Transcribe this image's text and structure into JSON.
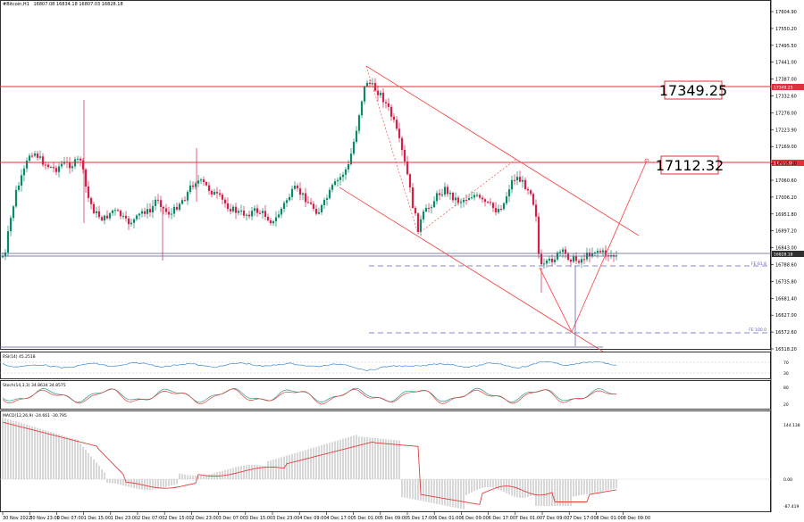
{
  "header": {
    "symbol": "#Bitcoin,H1",
    "ohlc": "16807.08 16834.18 16807.03 16828.18"
  },
  "price_axis": {
    "ticks": [
      "17604.90",
      "17550.20",
      "17495.50",
      "17441.00",
      "17387.00",
      "17332.60",
      "17278.00",
      "17223.90",
      "17169.00",
      "17115.20",
      "17060.60",
      "17006.20",
      "16951.80",
      "16897.20",
      "16843.00",
      "16788.60",
      "16735.80",
      "16681.40",
      "16627.00",
      "16572.60",
      "16518.20"
    ]
  },
  "time_axis": {
    "ticks": [
      "30 Nov 2022",
      "30 Nov 23:00",
      "1 Dec 07:00",
      "1 Dec 15:00",
      "1 Dec 23:00",
      "2 Dec 07:00",
      "2 Dec 15:00",
      "2 Dec 23:00",
      "3 Dec 07:00",
      "3 Dec 15:00",
      "3 Dec 23:00",
      "4 Dec 09:00",
      "4 Dec 17:00",
      "5 Dec 01:00",
      "5 Dec 09:00",
      "5 Dec 17:00",
      "6 Dec 01:00",
      "6 Dec 09:00",
      "6 Dec 17:00",
      "7 Dec 01:00",
      "7 Dec 09:00",
      "7 Dec 17:00",
      "8 Dec 01:00",
      "8 Dec 09:00"
    ]
  },
  "levels": {
    "upper": {
      "value": "17349.25",
      "tag": "17349.25"
    },
    "middle": {
      "value": "17112.32",
      "tag": "17112.32"
    },
    "current": {
      "tag": "16828.18"
    }
  },
  "fibo": {
    "level_61": "FE 61.8",
    "level_100": "FE 100.0"
  },
  "indicators": {
    "rsi": {
      "label": "RSI(14) 45.2518",
      "ticks": [
        "70",
        "30"
      ]
    },
    "stoch": {
      "label": "Stoch(14,3,3) 34.8634 34.8575",
      "ticks": [
        "80",
        "20"
      ]
    },
    "macd": {
      "label": "MACD(12,26,9) -24.661 -30.795",
      "ticks": [
        "144.138",
        "0.00",
        "-87.419"
      ]
    }
  },
  "colors": {
    "bull": "#0a8a6a",
    "bear": "#d6204a",
    "level_line": "#e0303a",
    "channel": "#f05050",
    "rsi_line": "#3a8ad6",
    "stoch_main": "#2a9a8a",
    "stoch_signal": "#e04040",
    "macd_hist": "#b0b0b0",
    "macd_signal": "#e04040",
    "fibo": "#6060c0"
  }
}
